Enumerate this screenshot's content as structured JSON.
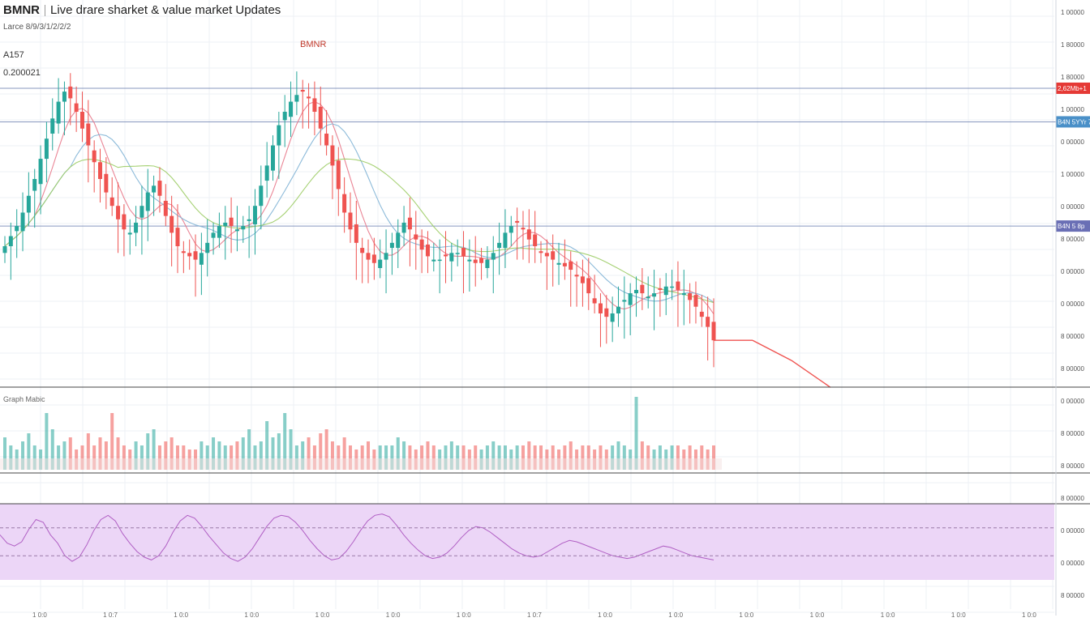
{
  "header": {
    "symbol": "BMNR",
    "title": "Live drare sharket & value market Updates"
  },
  "legend_lines": [
    "Larce 8/9/3/1/2/2/2",
    "A157",
    "0.200021"
  ],
  "price_tag_label": "BMNR",
  "volume_label": "Graph Mabic",
  "colors": {
    "up": "#26a69a",
    "down": "#ef5350",
    "ma_pink": "#e8788a",
    "ma_blue": "#7fb3d5",
    "ma_green": "#9ccc65",
    "oscillator_fill": "#ecd6f7",
    "oscillator_line": "#b05fc4",
    "hline": "#6b7fb0"
  },
  "chart_data": {
    "type": "candlestick",
    "title": "Live drare sharket & value market Updates",
    "y_axis": "right",
    "grid": true,
    "price_range": [
      0,
      100
    ],
    "candles_close": [
      40,
      43,
      46,
      50,
      55,
      60,
      66,
      72,
      78,
      83,
      86,
      84,
      80,
      75,
      70,
      65,
      60,
      56,
      52,
      48,
      45,
      44,
      47,
      52,
      56,
      58,
      55,
      49,
      44,
      40,
      38,
      37,
      36,
      38,
      41,
      44,
      46,
      47,
      46,
      45,
      46,
      48,
      52,
      58,
      64,
      70,
      76,
      80,
      83,
      85,
      86,
      84,
      80,
      75,
      70,
      64,
      57,
      50,
      45,
      41,
      38,
      36,
      35,
      36,
      38,
      41,
      44,
      47,
      45,
      42,
      39,
      37,
      36,
      36,
      37,
      38,
      38,
      37,
      36,
      35,
      35,
      36,
      38,
      41,
      44,
      46,
      47,
      45,
      42,
      40,
      38,
      37,
      36,
      35,
      34,
      33,
      31,
      29,
      26,
      23,
      20,
      19,
      20,
      22,
      24,
      26,
      27,
      26,
      25,
      26,
      27,
      28,
      28,
      27,
      26,
      24,
      22,
      19,
      16,
      12
    ],
    "trend_tail": [
      12,
      6,
      -2
    ],
    "horizontal_levels": [
      {
        "value": 87,
        "tag": "2,62Mb+1"
      },
      {
        "value": 77,
        "tag": "B4N 5YYr 7 B0"
      },
      {
        "value": 46,
        "tag": "B4N 5 8p"
      }
    ],
    "price_ticks": [
      "1 00000",
      "1 80000",
      "1 80000",
      "1 00000",
      "0 00000",
      "1 00000",
      "0 00000",
      "8 00000",
      "0 00000",
      "0 00000",
      "8 00000",
      "8 00000",
      "0 00000",
      "8 00000",
      "8 00000",
      "8 00000",
      "0 00000",
      "0 00000",
      "8 00000"
    ],
    "time_ticks": [
      "1 0:0",
      "1 0:7",
      "1 0:0",
      "1 0:0",
      "1 0:0",
      "1 0:0",
      "1 0:0",
      "1 0:7",
      "1 0:0",
      "1 0:0",
      "1 0:0",
      "1 0:0",
      "1 0:0",
      "1 0:0",
      "1 0:0"
    ],
    "volume": [
      8,
      6,
      5,
      7,
      9,
      6,
      5,
      14,
      10,
      6,
      7,
      8,
      5,
      6,
      9,
      6,
      8,
      7,
      14,
      8,
      6,
      5,
      7,
      6,
      9,
      10,
      6,
      7,
      8,
      6,
      6,
      5,
      5,
      7,
      6,
      8,
      7,
      6,
      6,
      7,
      8,
      10,
      6,
      7,
      12,
      8,
      9,
      14,
      10,
      6,
      7,
      8,
      6,
      9,
      10,
      7,
      6,
      8,
      6,
      5,
      6,
      7,
      5,
      6,
      6,
      6,
      8,
      7,
      6,
      5,
      6,
      7,
      6,
      5,
      6,
      7,
      6,
      6,
      5,
      6,
      5,
      6,
      7,
      6,
      6,
      5,
      6,
      6,
      7,
      6,
      6,
      5,
      6,
      5,
      6,
      7,
      5,
      6,
      6,
      5,
      6,
      5,
      6,
      7,
      6,
      5,
      18,
      7,
      6,
      5,
      6,
      5,
      6,
      6,
      5,
      6,
      5,
      6,
      5,
      6
    ],
    "oscillator": [
      60,
      48,
      44,
      50,
      68,
      82,
      78,
      60,
      48,
      30,
      22,
      28,
      45,
      66,
      82,
      88,
      80,
      62,
      48,
      36,
      28,
      24,
      30,
      44,
      64,
      80,
      88,
      84,
      72,
      58,
      46,
      34,
      26,
      22,
      28,
      40,
      56,
      72,
      84,
      88,
      86,
      78,
      66,
      52,
      40,
      30,
      24,
      26,
      36,
      50,
      66,
      80,
      88,
      90,
      86,
      74,
      60,
      48,
      38,
      30,
      26,
      28,
      34,
      44,
      56,
      66,
      72,
      70,
      64,
      56,
      48,
      40,
      34,
      30,
      28,
      30,
      36,
      42,
      48,
      52,
      50,
      46,
      42,
      38,
      34,
      30,
      28,
      26,
      28,
      32,
      36,
      40,
      44,
      42,
      38,
      34,
      30,
      28,
      26,
      24
    ],
    "osc_levels": [
      70,
      30
    ]
  }
}
